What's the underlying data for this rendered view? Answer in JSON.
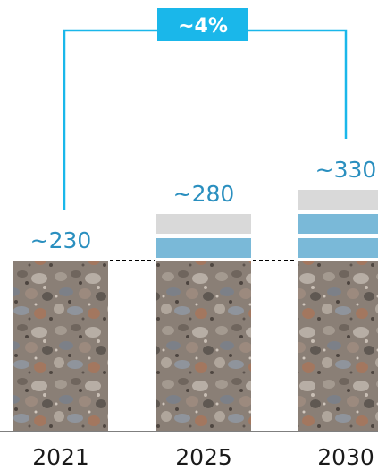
{
  "chart_data": {
    "type": "bar",
    "categories": [
      "2021",
      "2025",
      "2030"
    ],
    "values": [
      230,
      280,
      330
    ],
    "value_labels": [
      "~230",
      "~280",
      "~330"
    ],
    "cagr_label": "~4%",
    "bar_fill": "gravel-texture",
    "increment_segments": [
      0,
      2,
      3
    ],
    "colors": {
      "accent": "#1ab7ea",
      "label_text": "#2a8fbf",
      "increment_blue": "#7ab9d8",
      "increment_grey": "#d9d9d9",
      "axis": "#7f7f7f",
      "tick_text": "#1a1a1a"
    }
  }
}
